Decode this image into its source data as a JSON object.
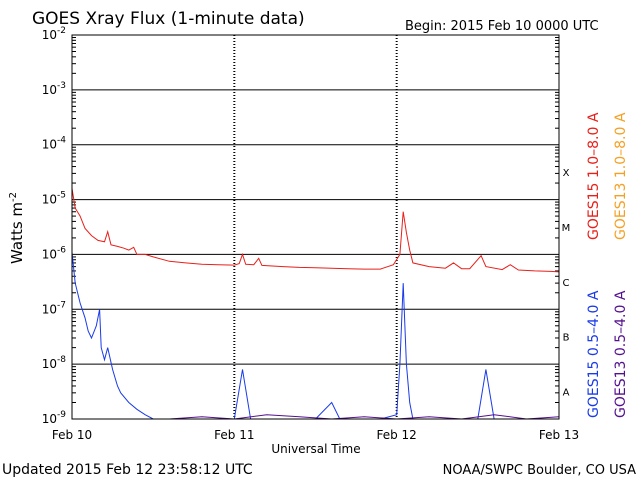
{
  "chart_data": {
    "type": "line",
    "title": "GOES Xray Flux (1-minute data)",
    "begin_label": "Begin:  2015 Feb 10 0000 UTC",
    "ylabel": "Watts m",
    "ylabel_sup": "-2",
    "xlabel": "Universal Time",
    "y_scale": "log",
    "ylim": [
      1e-09,
      0.01
    ],
    "xlim": [
      0,
      3
    ],
    "grid": true,
    "x_ticks": [
      {
        "value": 0,
        "label": "Feb 10"
      },
      {
        "value": 1,
        "label": "Feb 11"
      },
      {
        "value": 2,
        "label": "Feb 12"
      },
      {
        "value": 3,
        "label": "Feb 13"
      }
    ],
    "y_ticks": [
      {
        "exp": -2
      },
      {
        "exp": -3
      },
      {
        "exp": -4
      },
      {
        "exp": -5
      },
      {
        "exp": -6
      },
      {
        "exp": -7
      },
      {
        "exp": -8
      },
      {
        "exp": -9
      }
    ],
    "flare_classes": [
      {
        "label": "X",
        "exp": -4
      },
      {
        "label": "M",
        "exp": -5
      },
      {
        "label": "C",
        "exp": -6
      },
      {
        "label": "B",
        "exp": -7
      },
      {
        "label": "A",
        "exp": -8
      }
    ],
    "legend_placement": "right",
    "series": [
      {
        "name": "GOES15 1.0–8.0 A",
        "color": "#e8201a",
        "points": [
          [
            0,
            1.6e-05
          ],
          [
            0.02,
            7e-06
          ],
          [
            0.05,
            5e-06
          ],
          [
            0.08,
            3e-06
          ],
          [
            0.12,
            2.2e-06
          ],
          [
            0.16,
            1.8e-06
          ],
          [
            0.2,
            1.7e-06
          ],
          [
            0.22,
            2.6e-06
          ],
          [
            0.24,
            1.5e-06
          ],
          [
            0.28,
            1.4e-06
          ],
          [
            0.32,
            1.3e-06
          ],
          [
            0.35,
            1.2e-06
          ],
          [
            0.38,
            1.35e-06
          ],
          [
            0.4,
            1e-06
          ],
          [
            0.45,
            1e-06
          ],
          [
            0.5,
            9e-07
          ],
          [
            0.6,
            7.5e-07
          ],
          [
            0.7,
            7e-07
          ],
          [
            0.8,
            6.6e-07
          ],
          [
            0.9,
            6.5e-07
          ],
          [
            1.0,
            6.4e-07
          ],
          [
            1.03,
            6.8e-07
          ],
          [
            1.05,
            1e-06
          ],
          [
            1.07,
            6.6e-07
          ],
          [
            1.12,
            6.5e-07
          ],
          [
            1.15,
            8.5e-07
          ],
          [
            1.17,
            6.3e-07
          ],
          [
            1.3,
            6e-07
          ],
          [
            1.4,
            5.8e-07
          ],
          [
            1.5,
            5.7e-07
          ],
          [
            1.6,
            5.6e-07
          ],
          [
            1.7,
            5.5e-07
          ],
          [
            1.8,
            5.4e-07
          ],
          [
            1.9,
            5.4e-07
          ],
          [
            1.98,
            6.5e-07
          ],
          [
            2.02,
            1e-06
          ],
          [
            2.04,
            6e-06
          ],
          [
            2.06,
            2.5e-06
          ],
          [
            2.08,
            1.2e-06
          ],
          [
            2.1,
            7e-07
          ],
          [
            2.2,
            6e-07
          ],
          [
            2.3,
            5.6e-07
          ],
          [
            2.35,
            7e-07
          ],
          [
            2.4,
            5.5e-07
          ],
          [
            2.45,
            5.5e-07
          ],
          [
            2.52,
            9.5e-07
          ],
          [
            2.55,
            6e-07
          ],
          [
            2.65,
            5.3e-07
          ],
          [
            2.7,
            6.5e-07
          ],
          [
            2.75,
            5.2e-07
          ],
          [
            2.85,
            5e-07
          ],
          [
            2.95,
            4.9e-07
          ],
          [
            3.0,
            4.8e-07
          ]
        ]
      },
      {
        "name": "GOES13 1.0–8.0 A",
        "color": "#f5a023",
        "points": []
      },
      {
        "name": "GOES15 0.5–4.0 A",
        "color": "#1a3be8",
        "points": [
          [
            0,
            1.1e-06
          ],
          [
            0.02,
            3e-07
          ],
          [
            0.05,
            1.3e-07
          ],
          [
            0.08,
            7e-08
          ],
          [
            0.1,
            4e-08
          ],
          [
            0.12,
            3e-08
          ],
          [
            0.15,
            5e-08
          ],
          [
            0.17,
            1e-07
          ],
          [
            0.18,
            2e-08
          ],
          [
            0.2,
            1.2e-08
          ],
          [
            0.22,
            2e-08
          ],
          [
            0.25,
            8e-09
          ],
          [
            0.28,
            4e-09
          ],
          [
            0.3,
            3e-09
          ],
          [
            0.35,
            2e-09
          ],
          [
            0.4,
            1.5e-09
          ],
          [
            0.45,
            1.2e-09
          ],
          [
            0.5,
            1e-09
          ],
          [
            0.6,
            1e-09
          ],
          [
            0.8,
            1e-09
          ],
          [
            1.0,
            1e-09
          ],
          [
            1.05,
            8e-09
          ],
          [
            1.1,
            1e-09
          ],
          [
            1.3,
            1e-09
          ],
          [
            1.5,
            1e-09
          ],
          [
            1.6,
            2e-09
          ],
          [
            1.65,
            1e-09
          ],
          [
            1.9,
            1e-09
          ],
          [
            2.0,
            1.2e-09
          ],
          [
            2.02,
            1e-08
          ],
          [
            2.04,
            3e-07
          ],
          [
            2.06,
            1e-08
          ],
          [
            2.08,
            2e-09
          ],
          [
            2.1,
            1e-09
          ],
          [
            2.5,
            1e-09
          ],
          [
            2.55,
            8e-09
          ],
          [
            2.6,
            1e-09
          ],
          [
            3.0,
            1e-09
          ]
        ]
      },
      {
        "name": "GOES13 0.5–4.0 A",
        "color": "#55108f",
        "points": [
          [
            0.6,
            1e-09
          ],
          [
            0.8,
            1.1e-09
          ],
          [
            1.0,
            1e-09
          ],
          [
            1.2,
            1.2e-09
          ],
          [
            1.4,
            1.1e-09
          ],
          [
            1.6,
            1e-09
          ],
          [
            1.8,
            1.1e-09
          ],
          [
            2.0,
            1e-09
          ],
          [
            2.2,
            1.1e-09
          ],
          [
            2.4,
            1e-09
          ],
          [
            2.6,
            1.2e-09
          ],
          [
            2.8,
            1e-09
          ],
          [
            3.0,
            1.1e-09
          ]
        ]
      }
    ]
  },
  "footer": {
    "updated": "Updated 2015 Feb 12 23:58:12 UTC",
    "credit": "NOAA/SWPC Boulder, CO USA"
  }
}
